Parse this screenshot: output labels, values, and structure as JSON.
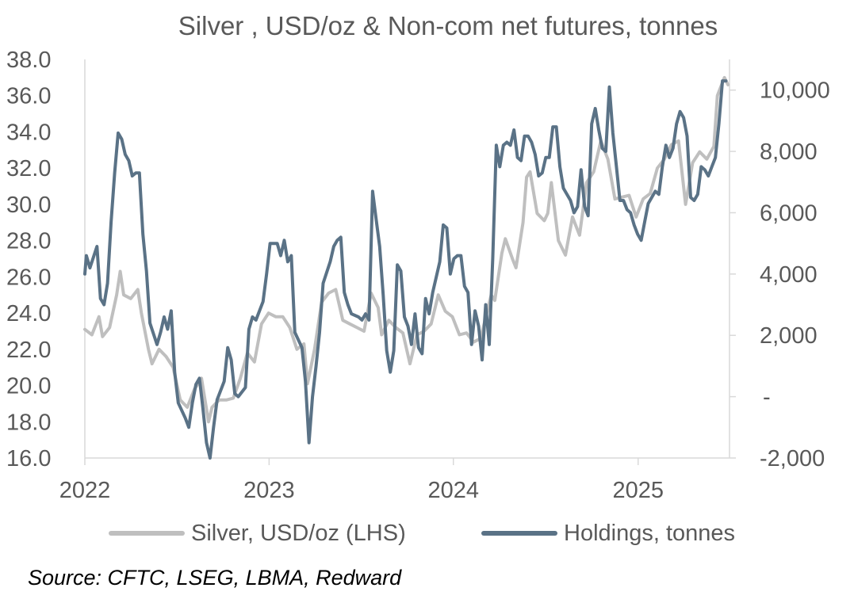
{
  "chart_data": {
    "type": "line",
    "title": "Silver , USD/oz & Non-com net  futures, tonnes",
    "source": "Source: CFTC, LSEG, LBMA, Redward",
    "x_axis": {
      "ticks": [
        "2022",
        "2023",
        "2024",
        "2025"
      ],
      "range": [
        "2022-01-01",
        "2025-07-01"
      ]
    },
    "y_left": {
      "range": [
        16,
        38
      ],
      "ticks": [
        "38.0",
        "36.0",
        "34.0",
        "32.0",
        "30.0",
        "28.0",
        "26.0",
        "24.0",
        "22.0",
        "20.0",
        "18.0",
        "16.0"
      ]
    },
    "y_right": {
      "range": [
        -2000,
        11000
      ],
      "ticks": [
        "10,000",
        "8,000",
        "6,000",
        "4,000",
        "2,000",
        "-",
        "-2,000"
      ]
    },
    "grid": false,
    "legend_position": "bottom",
    "series": [
      {
        "name": "Silver, USD/oz (LHS)",
        "axis": "left",
        "color": "#bfbfbf",
        "points": [
          [
            "2022-01-01",
            23.1
          ],
          [
            "2022-01-15",
            22.8
          ],
          [
            "2022-01-29",
            23.8
          ],
          [
            "2022-02-05",
            22.7
          ],
          [
            "2022-02-19",
            23.2
          ],
          [
            "2022-03-05",
            25.0
          ],
          [
            "2022-03-12",
            26.3
          ],
          [
            "2022-03-19",
            25.0
          ],
          [
            "2022-04-02",
            24.8
          ],
          [
            "2022-04-16",
            25.3
          ],
          [
            "2022-04-23",
            24.0
          ],
          [
            "2022-05-07",
            22.0
          ],
          [
            "2022-05-14",
            21.2
          ],
          [
            "2022-05-28",
            22.0
          ],
          [
            "2022-06-11",
            21.6
          ],
          [
            "2022-06-25",
            21.0
          ],
          [
            "2022-07-09",
            19.2
          ],
          [
            "2022-07-23",
            18.8
          ],
          [
            "2022-08-06",
            19.8
          ],
          [
            "2022-08-20",
            20.4
          ],
          [
            "2022-09-03",
            18.0
          ],
          [
            "2022-09-10",
            18.8
          ],
          [
            "2022-09-24",
            19.2
          ],
          [
            "2022-10-08",
            19.2
          ],
          [
            "2022-10-22",
            19.3
          ],
          [
            "2022-11-05",
            20.4
          ],
          [
            "2022-11-19",
            21.8
          ],
          [
            "2022-12-03",
            21.3
          ],
          [
            "2022-12-17",
            23.4
          ],
          [
            "2022-12-31",
            24.0
          ],
          [
            "2023-01-14",
            23.8
          ],
          [
            "2023-01-28",
            23.8
          ],
          [
            "2023-02-11",
            23.2
          ],
          [
            "2023-02-25",
            22.0
          ],
          [
            "2023-03-11",
            22.3
          ],
          [
            "2023-03-18",
            20.1
          ],
          [
            "2023-04-01",
            22.0
          ],
          [
            "2023-04-15",
            24.6
          ],
          [
            "2023-04-29",
            25.1
          ],
          [
            "2023-05-13",
            25.3
          ],
          [
            "2023-05-27",
            23.6
          ],
          [
            "2023-06-10",
            23.4
          ],
          [
            "2023-06-24",
            23.2
          ],
          [
            "2023-07-08",
            23.0
          ],
          [
            "2023-07-22",
            25.1
          ],
          [
            "2023-08-05",
            24.3
          ],
          [
            "2023-08-12",
            22.8
          ],
          [
            "2023-08-26",
            23.6
          ],
          [
            "2023-09-09",
            23.2
          ],
          [
            "2023-09-23",
            22.9
          ],
          [
            "2023-10-07",
            21.2
          ],
          [
            "2023-10-21",
            22.8
          ],
          [
            "2023-11-04",
            23.0
          ],
          [
            "2023-11-18",
            23.4
          ],
          [
            "2023-12-02",
            25.0
          ],
          [
            "2023-12-16",
            24.1
          ],
          [
            "2023-12-30",
            23.8
          ],
          [
            "2024-01-13",
            22.8
          ],
          [
            "2024-01-27",
            22.9
          ],
          [
            "2024-02-10",
            22.4
          ],
          [
            "2024-02-24",
            22.6
          ],
          [
            "2024-03-09",
            24.2
          ],
          [
            "2024-03-16",
            25.0
          ],
          [
            "2024-03-23",
            24.7
          ],
          [
            "2024-04-06",
            27.3
          ],
          [
            "2024-04-13",
            28.1
          ],
          [
            "2024-04-27",
            27.0
          ],
          [
            "2024-05-04",
            26.5
          ],
          [
            "2024-05-18",
            29.0
          ],
          [
            "2024-05-25",
            31.5
          ],
          [
            "2024-06-01",
            31.8
          ],
          [
            "2024-06-15",
            29.5
          ],
          [
            "2024-06-29",
            29.1
          ],
          [
            "2024-07-06",
            29.5
          ],
          [
            "2024-07-13",
            31.2
          ],
          [
            "2024-07-27",
            28.0
          ],
          [
            "2024-08-10",
            27.2
          ],
          [
            "2024-08-24",
            29.3
          ],
          [
            "2024-09-07",
            28.3
          ],
          [
            "2024-09-21",
            31.2
          ],
          [
            "2024-10-05",
            31.8
          ],
          [
            "2024-10-19",
            33.5
          ],
          [
            "2024-11-02",
            32.5
          ],
          [
            "2024-11-16",
            30.3
          ],
          [
            "2024-11-30",
            30.4
          ],
          [
            "2024-12-14",
            30.5
          ],
          [
            "2024-12-28",
            29.3
          ],
          [
            "2025-01-11",
            30.3
          ],
          [
            "2025-01-25",
            30.6
          ],
          [
            "2025-02-08",
            32.0
          ],
          [
            "2025-02-22",
            32.5
          ],
          [
            "2025-03-08",
            33.3
          ],
          [
            "2025-03-22",
            33.5
          ],
          [
            "2025-04-05",
            30.0
          ],
          [
            "2025-04-19",
            32.3
          ],
          [
            "2025-05-03",
            32.9
          ],
          [
            "2025-05-17",
            32.5
          ],
          [
            "2025-05-31",
            33.2
          ],
          [
            "2025-06-07",
            36.0
          ],
          [
            "2025-06-21",
            37.0
          ],
          [
            "2025-06-28",
            36.6
          ]
        ]
      },
      {
        "name": "Holdings, tonnes",
        "axis": "right",
        "color": "#5a7286",
        "points": [
          [
            "2022-01-01",
            4.0
          ],
          [
            "2022-01-04",
            4.6
          ],
          [
            "2022-01-11",
            4.2
          ],
          [
            "2022-01-25",
            4.9
          ],
          [
            "2022-02-01",
            3.2
          ],
          [
            "2022-02-08",
            3.0
          ],
          [
            "2022-02-15",
            3.7
          ],
          [
            "2022-02-22",
            5.7
          ],
          [
            "2022-03-01",
            7.3
          ],
          [
            "2022-03-08",
            8.6
          ],
          [
            "2022-03-15",
            8.4
          ],
          [
            "2022-03-22",
            7.9
          ],
          [
            "2022-03-29",
            7.7
          ],
          [
            "2022-04-05",
            7.2
          ],
          [
            "2022-04-12",
            7.3
          ],
          [
            "2022-04-19",
            7.3
          ],
          [
            "2022-04-26",
            5.3
          ],
          [
            "2022-05-03",
            4.1
          ],
          [
            "2022-05-10",
            2.4
          ],
          [
            "2022-05-24",
            1.7
          ],
          [
            "2022-05-31",
            2.1
          ],
          [
            "2022-06-07",
            2.6
          ],
          [
            "2022-06-14",
            2.2
          ],
          [
            "2022-06-21",
            2.8
          ],
          [
            "2022-06-28",
            0.8
          ],
          [
            "2022-07-05",
            -0.2
          ],
          [
            "2022-07-19",
            -0.7
          ],
          [
            "2022-07-26",
            -1.0
          ],
          [
            "2022-08-02",
            -0.2
          ],
          [
            "2022-08-09",
            0.4
          ],
          [
            "2022-08-16",
            0.6
          ],
          [
            "2022-08-23",
            -0.4
          ],
          [
            "2022-08-30",
            -1.5
          ],
          [
            "2022-09-06",
            -2.0
          ],
          [
            "2022-09-13",
            -1.0
          ],
          [
            "2022-09-20",
            -0.1
          ],
          [
            "2022-10-04",
            0.5
          ],
          [
            "2022-10-11",
            1.6
          ],
          [
            "2022-10-18",
            1.2
          ],
          [
            "2022-10-25",
            0.1
          ],
          [
            "2022-11-01",
            0.0
          ],
          [
            "2022-11-15",
            0.3
          ],
          [
            "2022-11-22",
            2.2
          ],
          [
            "2022-11-29",
            2.6
          ],
          [
            "2022-12-06",
            2.5
          ],
          [
            "2022-12-20",
            3.1
          ],
          [
            "2022-12-27",
            4.0
          ],
          [
            "2023-01-03",
            5.0
          ],
          [
            "2023-01-17",
            5.0
          ],
          [
            "2023-01-24",
            4.6
          ],
          [
            "2023-01-31",
            5.1
          ],
          [
            "2023-02-07",
            4.4
          ],
          [
            "2023-02-14",
            4.6
          ],
          [
            "2023-02-21",
            2.1
          ],
          [
            "2023-03-07",
            1.6
          ],
          [
            "2023-03-14",
            0.5
          ],
          [
            "2023-03-21",
            -1.5
          ],
          [
            "2023-03-28",
            0.0
          ],
          [
            "2023-04-04",
            1.0
          ],
          [
            "2023-04-11",
            2.1
          ],
          [
            "2023-04-18",
            3.7
          ],
          [
            "2023-05-02",
            4.4
          ],
          [
            "2023-05-09",
            4.9
          ],
          [
            "2023-05-16",
            5.1
          ],
          [
            "2023-05-23",
            5.2
          ],
          [
            "2023-05-30",
            3.4
          ],
          [
            "2023-06-06",
            3.0
          ],
          [
            "2023-06-13",
            2.7
          ],
          [
            "2023-06-27",
            2.6
          ],
          [
            "2023-07-04",
            2.5
          ],
          [
            "2023-07-11",
            2.7
          ],
          [
            "2023-07-18",
            2.5
          ],
          [
            "2023-07-25",
            6.7
          ],
          [
            "2023-08-01",
            5.8
          ],
          [
            "2023-08-08",
            4.9
          ],
          [
            "2023-08-15",
            3.3
          ],
          [
            "2023-08-22",
            1.5
          ],
          [
            "2023-08-29",
            0.8
          ],
          [
            "2023-09-05",
            1.5
          ],
          [
            "2023-09-12",
            4.3
          ],
          [
            "2023-09-19",
            4.1
          ],
          [
            "2023-09-26",
            2.6
          ],
          [
            "2023-10-03",
            2.3
          ],
          [
            "2023-10-10",
            1.7
          ],
          [
            "2023-10-17",
            2.7
          ],
          [
            "2023-10-24",
            1.6
          ],
          [
            "2023-10-31",
            1.4
          ],
          [
            "2023-11-07",
            3.2
          ],
          [
            "2023-11-14",
            2.7
          ],
          [
            "2023-11-21",
            3.4
          ],
          [
            "2023-12-05",
            4.4
          ],
          [
            "2023-12-12",
            5.6
          ],
          [
            "2023-12-19",
            5.5
          ],
          [
            "2023-12-26",
            4.0
          ],
          [
            "2024-01-02",
            4.5
          ],
          [
            "2024-01-09",
            4.6
          ],
          [
            "2024-01-16",
            4.6
          ],
          [
            "2024-01-23",
            3.6
          ],
          [
            "2024-01-30",
            3.4
          ],
          [
            "2024-02-06",
            1.7
          ],
          [
            "2024-02-13",
            2.8
          ],
          [
            "2024-02-20",
            2.3
          ],
          [
            "2024-02-27",
            1.2
          ],
          [
            "2024-03-05",
            3.0
          ],
          [
            "2024-03-12",
            1.7
          ],
          [
            "2024-03-19",
            4.5
          ],
          [
            "2024-03-26",
            8.2
          ],
          [
            "2024-04-02",
            7.5
          ],
          [
            "2024-04-09",
            8.2
          ],
          [
            "2024-04-16",
            8.3
          ],
          [
            "2024-04-23",
            8.2
          ],
          [
            "2024-04-30",
            8.7
          ],
          [
            "2024-05-07",
            7.8
          ],
          [
            "2024-05-14",
            7.7
          ],
          [
            "2024-05-21",
            8.5
          ],
          [
            "2024-05-28",
            8.5
          ],
          [
            "2024-06-04",
            8.3
          ],
          [
            "2024-06-11",
            7.9
          ],
          [
            "2024-06-18",
            7.2
          ],
          [
            "2024-06-25",
            7.3
          ],
          [
            "2024-07-02",
            7.8
          ],
          [
            "2024-07-09",
            7.8
          ],
          [
            "2024-07-16",
            8.8
          ],
          [
            "2024-07-23",
            8.8
          ],
          [
            "2024-07-30",
            7.5
          ],
          [
            "2024-08-06",
            6.8
          ],
          [
            "2024-08-20",
            6.4
          ],
          [
            "2024-08-27",
            6.0
          ],
          [
            "2024-09-03",
            6.2
          ],
          [
            "2024-09-10",
            7.4
          ],
          [
            "2024-09-17",
            6.2
          ],
          [
            "2024-09-24",
            5.9
          ],
          [
            "2024-10-01",
            8.9
          ],
          [
            "2024-10-08",
            9.4
          ],
          [
            "2024-10-15",
            8.7
          ],
          [
            "2024-10-22",
            8.1
          ],
          [
            "2024-10-29",
            8.0
          ],
          [
            "2024-11-05",
            10.1
          ],
          [
            "2024-11-12",
            8.6
          ],
          [
            "2024-11-19",
            7.5
          ],
          [
            "2024-11-26",
            6.4
          ],
          [
            "2024-12-03",
            6.4
          ],
          [
            "2024-12-10",
            6.1
          ],
          [
            "2024-12-17",
            6.0
          ],
          [
            "2024-12-24",
            5.6
          ],
          [
            "2024-12-31",
            5.3
          ],
          [
            "2025-01-07",
            5.1
          ],
          [
            "2025-01-14",
            5.7
          ],
          [
            "2025-01-21",
            6.3
          ],
          [
            "2025-02-04",
            6.7
          ],
          [
            "2025-02-11",
            6.6
          ],
          [
            "2025-02-18",
            7.5
          ],
          [
            "2025-02-25",
            8.2
          ],
          [
            "2025-03-04",
            7.8
          ],
          [
            "2025-03-11",
            8.1
          ],
          [
            "2025-03-18",
            8.9
          ],
          [
            "2025-03-25",
            9.3
          ],
          [
            "2025-04-01",
            9.1
          ],
          [
            "2025-04-08",
            8.5
          ],
          [
            "2025-04-15",
            6.5
          ],
          [
            "2025-04-22",
            6.4
          ],
          [
            "2025-04-29",
            6.6
          ],
          [
            "2025-05-06",
            7.5
          ],
          [
            "2025-05-13",
            7.4
          ],
          [
            "2025-05-20",
            7.2
          ],
          [
            "2025-05-27",
            7.5
          ],
          [
            "2025-06-03",
            7.8
          ],
          [
            "2025-06-10",
            8.9
          ],
          [
            "2025-06-17",
            10.3
          ],
          [
            "2025-06-24",
            10.3
          ]
        ],
        "y_unit_note": "thousands of tonnes"
      }
    ]
  }
}
